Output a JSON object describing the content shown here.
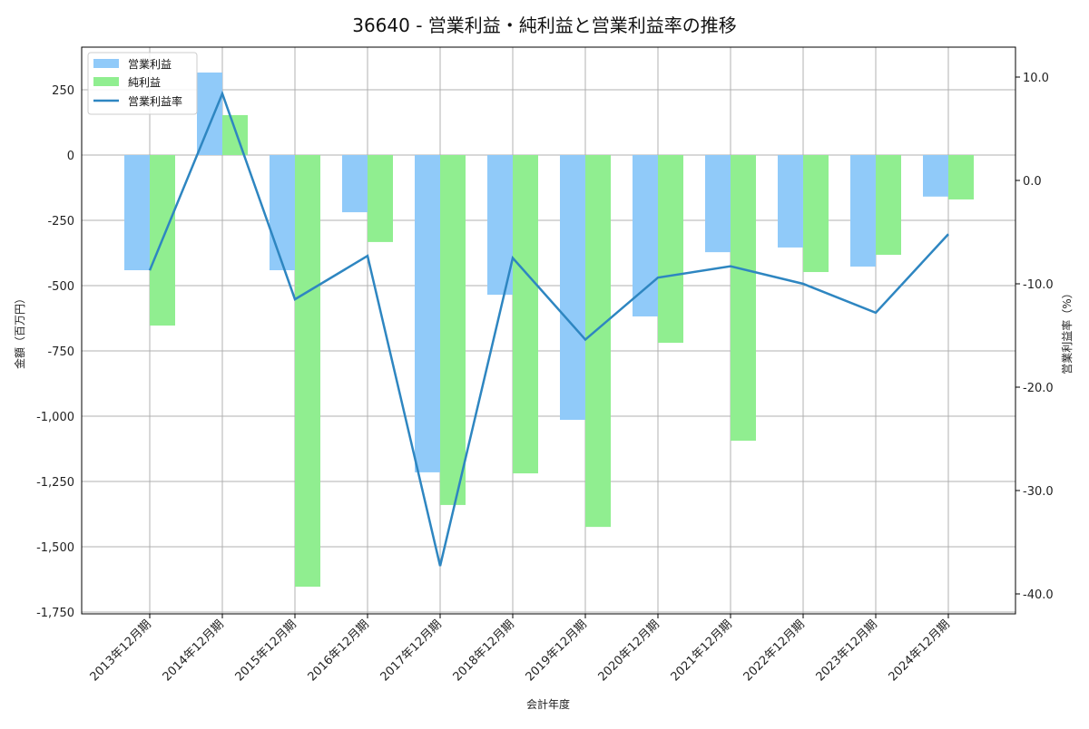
{
  "chart_data": {
    "type": "bar",
    "title": "36640 - 営業利益・純利益と営業利益率の推移",
    "xlabel": "会計年度",
    "ylabel": "金額（百万円）",
    "ylabel_right": "営業利益率（%）",
    "ylim": [
      -1750,
      400
    ],
    "ylim_right": [
      -41,
      13
    ],
    "categories": [
      "2013年12月期",
      "2014年12月期",
      "2015年12月期",
      "2016年12月期",
      "2017年12月期",
      "2018年12月期",
      "2019年12月期",
      "2020年12月期",
      "2021年12月期",
      "2022年12月期",
      "2023年12月期",
      "2024年12月期"
    ],
    "series": [
      {
        "name": "営業利益",
        "type": "bar",
        "color": "#90caf9",
        "values": [
          -441,
          316,
          -441,
          -219,
          -1215,
          -535,
          -1014,
          -618,
          -372,
          -354,
          -427,
          -159
        ]
      },
      {
        "name": "純利益",
        "type": "bar",
        "color": "#90ee90",
        "values": [
          -653,
          153,
          -1653,
          -333,
          -1340,
          -1219,
          -1424,
          -719,
          -1094,
          -448,
          -382,
          -170
        ]
      },
      {
        "name": "営業利益率",
        "type": "line",
        "axis": "right",
        "color": "#2e86c1",
        "values": [
          -8.7,
          8.4,
          -11.5,
          -7.3,
          -37.3,
          -7.5,
          -15.4,
          -9.4,
          -8.3,
          -10.0,
          -12.8,
          -5.2
        ]
      }
    ],
    "yticks": [
      "250",
      "0",
      "-250",
      "-500",
      "-750",
      "-1,000",
      "-1,250",
      "-1,500",
      "-1,750"
    ],
    "yticks_right": [
      "10.0",
      "0.0",
      "-10.0",
      "-20.0",
      "-30.0",
      "-40.0"
    ],
    "legend_position": "upper left",
    "grid": true
  }
}
